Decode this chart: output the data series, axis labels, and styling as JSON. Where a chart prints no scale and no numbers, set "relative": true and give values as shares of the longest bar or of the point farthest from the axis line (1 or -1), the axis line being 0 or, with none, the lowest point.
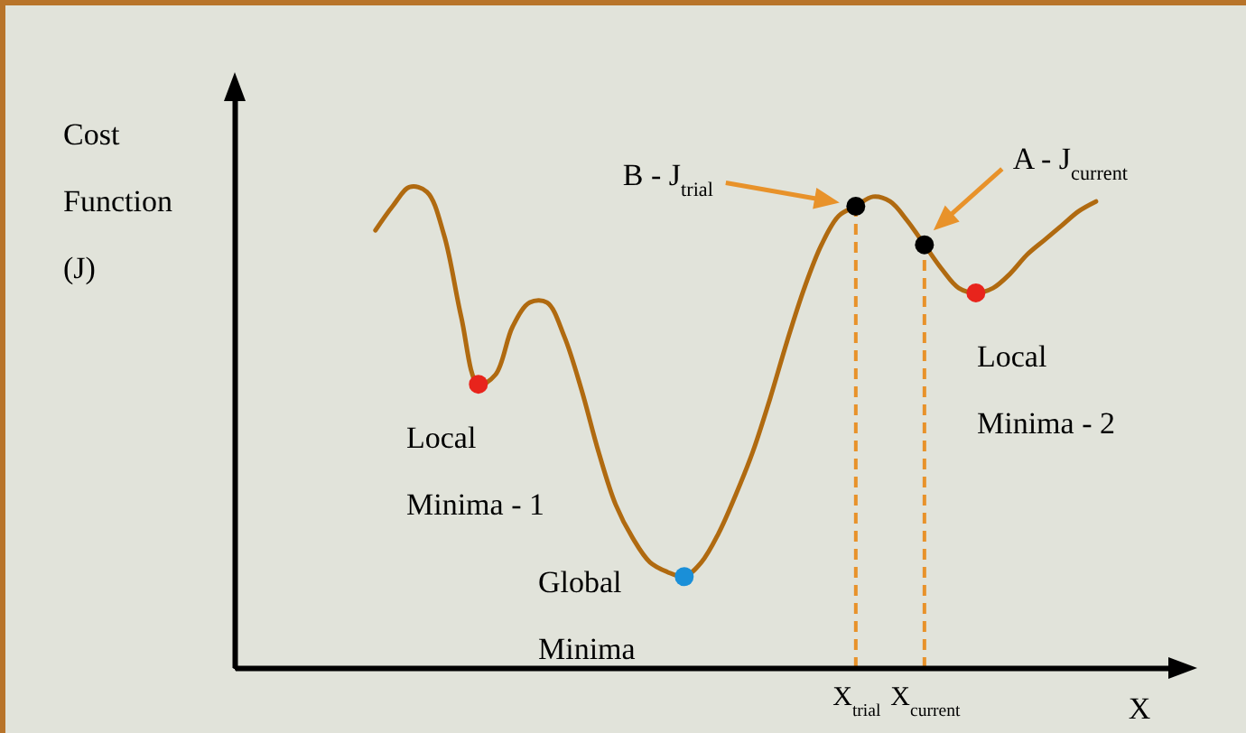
{
  "chart_data": {
    "type": "line",
    "relative": true,
    "xlabel": "X",
    "categories": [
      null,
      null,
      null,
      null,
      null,
      null,
      null,
      null,
      null,
      null,
      null,
      null,
      null,
      null,
      null,
      null,
      null,
      null,
      null,
      null,
      null,
      null,
      null,
      null,
      null,
      null,
      null,
      null,
      "X$_{trial}$",
      null,
      null,
      null,
      "X$_{current}$",
      null,
      null,
      null,
      null,
      null,
      null,
      null,
      null,
      null,
      null
    ],
    "series": [
      {
        "color": "#b06a10",
        "values": [
          0.91,
          0.96,
          1.0,
          0.99,
          0.9,
          0.73,
          0.59,
          0.61,
          0.71,
          0.76,
          0.76,
          0.69,
          0.58,
          0.45,
          0.34,
          0.27,
          0.22,
          0.2,
          0.19,
          0.22,
          0.28,
          0.36,
          0.45,
          0.56,
          0.68,
          0.79,
          0.88,
          0.94,
          0.96,
          0.98,
          0.97,
          0.93,
          0.88,
          0.83,
          0.79,
          0.78,
          0.79,
          0.82,
          0.86,
          0.89,
          0.92,
          0.95,
          0.97
        ]
      },
      {
        "type": "scatter",
        "marker": "circle",
        "colors": [
          null,
          null,
          null,
          null,
          null,
          null,
          "#e8241c",
          null,
          null,
          null,
          null,
          null,
          null,
          null,
          null,
          null,
          null,
          null,
          "#1a8fd8",
          null,
          null,
          null,
          null,
          null,
          null,
          null,
          null,
          null,
          "#000000",
          null,
          null,
          null,
          "#000000",
          null,
          null,
          "#e8241c",
          null,
          null,
          null,
          null,
          null,
          null,
          null
        ],
        "values": [
          null,
          null,
          null,
          null,
          null,
          null,
          0.59,
          null,
          null,
          null,
          null,
          null,
          null,
          null,
          null,
          null,
          null,
          null,
          0.19,
          null,
          null,
          null,
          null,
          null,
          null,
          null,
          null,
          null,
          0.96,
          null,
          null,
          null,
          0.88,
          null,
          null,
          0.78,
          null,
          null,
          null,
          null,
          null,
          null,
          null
        ]
      }
    ],
    "ref_lines": [
      {
        "axis": "x",
        "value": "X$_{trial}$",
        "color": "#e8922a",
        "line_style": "dashed"
      },
      {
        "axis": "x",
        "value": "X$_{current}$",
        "color": "#e8922a",
        "line_style": "dashed"
      }
    ],
    "annotations": [
      "Cost Function (J)",
      "Local Minima - 1",
      "Local Minima - 2",
      "Global Minima",
      "B - J$_{trial}$",
      "A - J$_{current}$"
    ]
  }
}
